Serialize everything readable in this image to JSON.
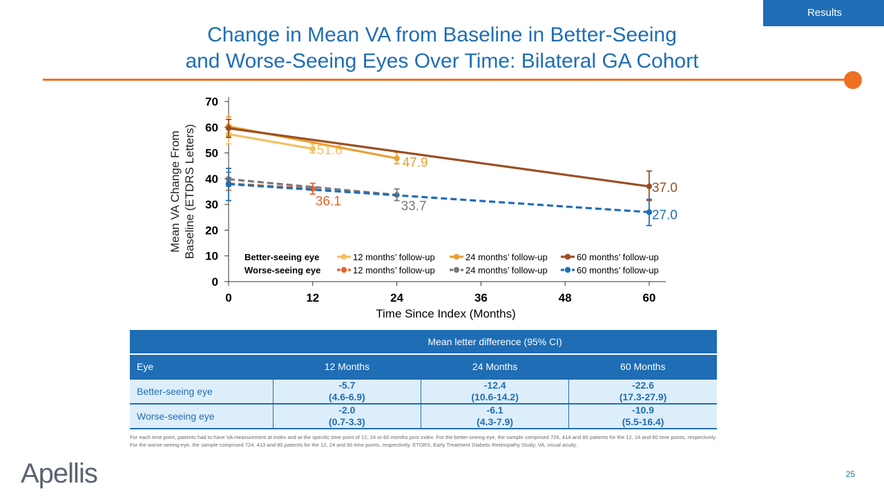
{
  "header": {
    "section_tag": "Results"
  },
  "title": {
    "line1": "Change in Mean VA from Baseline in Better-Seeing",
    "line2": "and Worse-Seeing Eyes Over Time: Bilateral GA Cohort"
  },
  "colors": {
    "accent": "#1f6db5",
    "orange": "#f07022"
  },
  "chart_data": {
    "type": "line",
    "title": "",
    "xlabel": "Time Since Index (Months)",
    "ylabel_line1": "Mean VA Change From",
    "ylabel_line2": "Baseline (ETDRS Letters)",
    "xlim": [
      0,
      60
    ],
    "ylim": [
      0,
      70
    ],
    "x_ticks": [
      0,
      12,
      24,
      36,
      48,
      60
    ],
    "y_ticks": [
      0,
      10,
      20,
      30,
      40,
      50,
      60,
      70
    ],
    "legend_position": "bottom-right",
    "legend_rows": [
      {
        "label": "Better-seeing eye",
        "entries": [
          "12 months’ follow-up",
          "24 months’ follow-up",
          "60 months’ follow-up"
        ]
      },
      {
        "label": "Worse-seeing eye",
        "entries": [
          "12 months’ follow-up",
          "24 months’ follow-up",
          "60 months’ follow-up"
        ]
      }
    ],
    "series": [
      {
        "name": "Better-seeing eye 12 months’ follow-up",
        "group": "better",
        "color": "#f2c063",
        "dashed": false,
        "x": [
          0,
          12
        ],
        "y": [
          57.3,
          51.6
        ],
        "ci_low": [
          53.5,
          50.0
        ],
        "ci_high": [
          61.0,
          53.5
        ],
        "end_label": "51.6"
      },
      {
        "name": "Better-seeing eye 24 months’ follow-up",
        "group": "better",
        "color": "#e9a032",
        "dashed": false,
        "x": [
          0,
          24
        ],
        "y": [
          60.3,
          47.9
        ],
        "ci_low": [
          56.5,
          45.8
        ],
        "ci_high": [
          64.0,
          50.2
        ],
        "end_label": "47.9"
      },
      {
        "name": "Better-seeing eye 60 months’ follow-up",
        "group": "better",
        "color": "#9a4f22",
        "dashed": false,
        "x": [
          0,
          60
        ],
        "y": [
          59.6,
          37.0
        ],
        "ci_low": [
          56.0,
          31.5
        ],
        "ci_high": [
          63.0,
          43.0
        ],
        "end_label": "37.0"
      },
      {
        "name": "Worse-seeing eye 12 months’ follow-up",
        "group": "worse",
        "color": "#e8622a",
        "dashed": true,
        "x": [
          0,
          12
        ],
        "y": [
          38.1,
          36.1
        ],
        "ci_low": [
          35.5,
          34.0
        ],
        "ci_high": [
          40.5,
          38.2
        ],
        "end_label": "36.1"
      },
      {
        "name": "Worse-seeing eye 24 months’ follow-up",
        "group": "worse",
        "color": "#7a7a7a",
        "dashed": true,
        "x": [
          0,
          24
        ],
        "y": [
          39.8,
          33.7
        ],
        "ci_low": [
          37.0,
          31.5
        ],
        "ci_high": [
          42.5,
          36.0
        ],
        "end_label": "33.7"
      },
      {
        "name": "Worse-seeing eye 60 months’ follow-up",
        "group": "worse",
        "color": "#1f6db5",
        "dashed": true,
        "x": [
          0,
          60
        ],
        "y": [
          37.9,
          27.0
        ],
        "ci_low": [
          31.5,
          21.8
        ],
        "ci_high": [
          44.0,
          32.0
        ],
        "end_label": "27.0"
      }
    ]
  },
  "table": {
    "group_header": "Mean letter difference (95% CI)",
    "eye_header": "Eye",
    "columns": [
      "12 Months",
      "24 Months",
      "60  Months"
    ],
    "rows": [
      {
        "label": "Better-seeing eye",
        "cells": [
          {
            "mean": "-5.7",
            "ci": "(4.6-6.9)"
          },
          {
            "mean": "-12.4",
            "ci": "(10.6-14.2)"
          },
          {
            "mean": "-22.6",
            "ci": "(17.3-27.9)"
          }
        ]
      },
      {
        "label": "Worse-seeing eye",
        "cells": [
          {
            "mean": "-2.0",
            "ci": "(0.7-3.3)"
          },
          {
            "mean": "-6.1",
            "ci": "(4.3-7.9)"
          },
          {
            "mean": "-10.9",
            "ci": "(5.5-16.4)"
          }
        ]
      }
    ]
  },
  "footnote": "For each time point, patients had to have VA measurement at index and at the specific time point of 12, 24 or 60 months post index. For the better-seeing eye, the sample comprised 726, 414 and 80 patients for the 12, 24 and 60 time points, respectively. For the worse-seeing-eye, the sample comprised 724, 413 and 80 patients for the 12, 24 and 60 time points, respectively. ETDRS, Early Treatment Diabetic Retinopathy Study; VA, visual acuity.",
  "logo": "Apellis",
  "page_number": "25"
}
